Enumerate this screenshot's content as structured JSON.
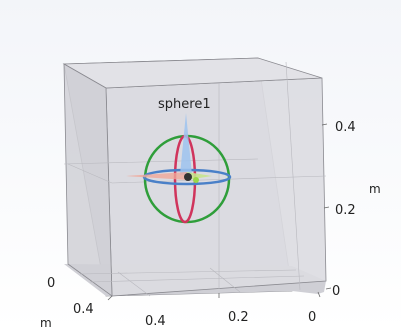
{
  "viewport": {
    "object_label": "sphere1",
    "right_axis": {
      "ticks": [
        "0.4",
        "0.2",
        "0"
      ],
      "unit": "m"
    },
    "bottom_axis": {
      "ticks": [
        "0.4",
        "0.2",
        "0"
      ]
    },
    "left_axis": {
      "ticks": [
        "0",
        "0.4"
      ],
      "unit": "m"
    },
    "colors": {
      "background_top": "#f4f6fa",
      "box_face": "#d9d9de",
      "edge": "#8a8a90",
      "sphere_green": "#2f9e3a",
      "sphere_red": "#d0345c",
      "sphere_blue": "#4a80c8",
      "gizmo_arrow": "#9ec3ee",
      "gizmo_arrow_left": "#f0a79a"
    }
  }
}
